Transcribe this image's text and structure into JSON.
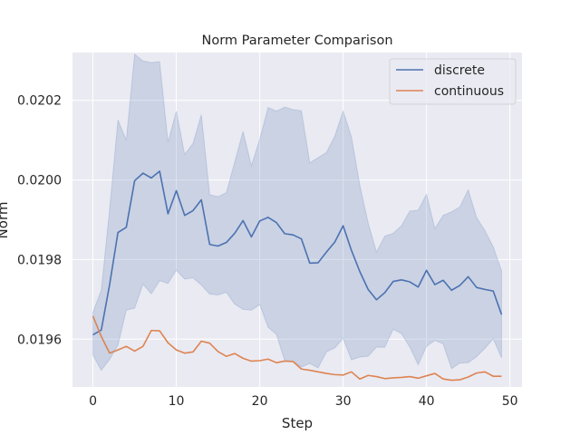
{
  "chart_data": {
    "type": "line",
    "title": "Norm Parameter Comparison",
    "xlabel": "Step",
    "ylabel": "Norm",
    "xlim": [
      -2.45,
      51.45
    ],
    "ylim": [
      0.01948,
      0.02032
    ],
    "x_ticks": [
      0,
      10,
      20,
      30,
      40,
      50
    ],
    "y_ticks": [
      0.0196,
      0.0198,
      0.02,
      0.0202
    ],
    "x_tick_labels": [
      "0",
      "10",
      "20",
      "30",
      "40",
      "50"
    ],
    "y_tick_labels": [
      "0.0196",
      "0.0198",
      "0.0200",
      "0.0202"
    ],
    "grid": true,
    "legend_position": "top-right",
    "x": [
      0,
      1,
      2,
      3,
      4,
      5,
      6,
      7,
      8,
      9,
      10,
      11,
      12,
      13,
      14,
      15,
      16,
      17,
      18,
      19,
      20,
      21,
      22,
      23,
      24,
      25,
      26,
      27,
      28,
      29,
      30,
      31,
      32,
      33,
      34,
      35,
      36,
      37,
      38,
      39,
      40,
      41,
      42,
      43,
      44,
      45,
      46,
      47,
      48,
      49
    ],
    "series": [
      {
        "name": "discrete",
        "color": "#4c72b0",
        "values": [
          0.019611,
          0.019623,
          0.019737,
          0.019868,
          0.019881,
          0.019998,
          0.020017,
          0.020005,
          0.020022,
          0.019915,
          0.019973,
          0.019911,
          0.019923,
          0.01995,
          0.019838,
          0.019834,
          0.019843,
          0.019866,
          0.019898,
          0.019857,
          0.019897,
          0.019906,
          0.019893,
          0.019865,
          0.019862,
          0.019852,
          0.019791,
          0.019792,
          0.019819,
          0.019844,
          0.019885,
          0.019823,
          0.01977,
          0.019725,
          0.019699,
          0.019717,
          0.019745,
          0.019749,
          0.019744,
          0.019731,
          0.019773,
          0.019737,
          0.019748,
          0.019723,
          0.019735,
          0.019757,
          0.01973,
          0.019725,
          0.019721,
          0.019662
        ],
        "band_upper": [
          0.019668,
          0.019723,
          0.019926,
          0.020151,
          0.0201,
          0.020316,
          0.020299,
          0.020295,
          0.020297,
          0.020095,
          0.020173,
          0.020064,
          0.020092,
          0.020164,
          0.019963,
          0.019958,
          0.019968,
          0.020045,
          0.020122,
          0.020036,
          0.020102,
          0.020182,
          0.020173,
          0.020183,
          0.020177,
          0.020174,
          0.020043,
          0.020056,
          0.020069,
          0.02011,
          0.020173,
          0.020108,
          0.019987,
          0.019892,
          0.019819,
          0.019859,
          0.019866,
          0.019885,
          0.019922,
          0.019924,
          0.019964,
          0.019878,
          0.019911,
          0.01992,
          0.019932,
          0.019975,
          0.019906,
          0.019873,
          0.019832,
          0.019772
        ],
        "band_lower": [
          0.01956,
          0.019522,
          0.019549,
          0.019585,
          0.019673,
          0.019678,
          0.019738,
          0.019714,
          0.019747,
          0.01974,
          0.019773,
          0.019751,
          0.019754,
          0.019736,
          0.019713,
          0.019711,
          0.019718,
          0.019688,
          0.019675,
          0.019673,
          0.019687,
          0.01963,
          0.019612,
          0.019546,
          0.019544,
          0.01953,
          0.019539,
          0.019528,
          0.019568,
          0.019578,
          0.019602,
          0.019548,
          0.019555,
          0.019557,
          0.01958,
          0.01958,
          0.019625,
          0.019614,
          0.01958,
          0.019536,
          0.019582,
          0.019597,
          0.019588,
          0.019526,
          0.01954,
          0.019541,
          0.019556,
          0.019577,
          0.019601,
          0.019553
        ]
      },
      {
        "name": "continuous",
        "color": "#dd8452",
        "values": [
          0.019658,
          0.019607,
          0.019565,
          0.019573,
          0.019582,
          0.01957,
          0.019582,
          0.019622,
          0.019621,
          0.019591,
          0.019573,
          0.019565,
          0.019568,
          0.019595,
          0.01959,
          0.019569,
          0.019557,
          0.019564,
          0.019552,
          0.019545,
          0.019546,
          0.01955,
          0.019541,
          0.019545,
          0.019544,
          0.019525,
          0.019522,
          0.019518,
          0.019514,
          0.019511,
          0.01951,
          0.019518,
          0.0195,
          0.019509,
          0.019506,
          0.019501,
          0.019503,
          0.019504,
          0.019506,
          0.019502,
          0.019508,
          0.019514,
          0.0195,
          0.019497,
          0.019498,
          0.019505,
          0.019515,
          0.019518,
          0.019507,
          0.019507
        ]
      }
    ]
  }
}
